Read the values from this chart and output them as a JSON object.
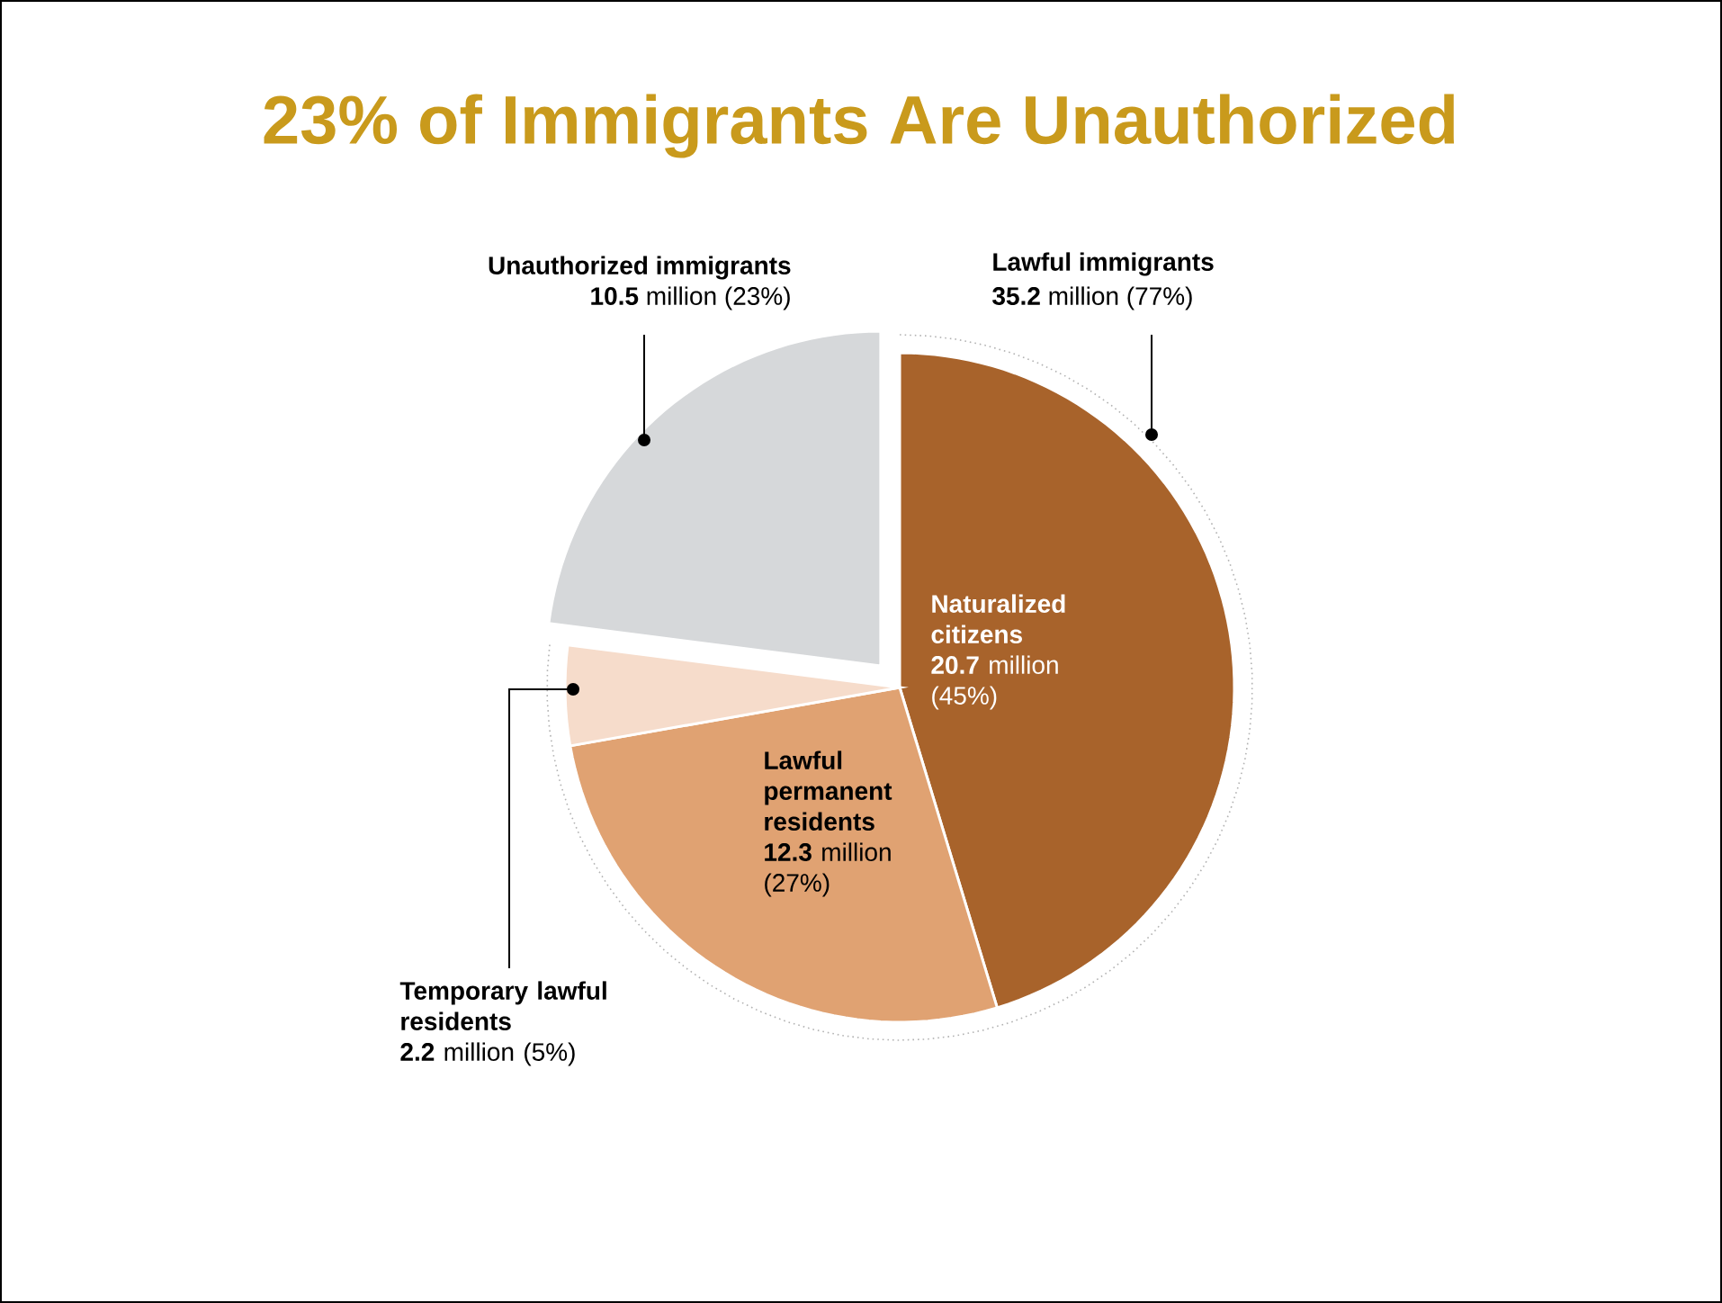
{
  "chart_data": {
    "type": "pie",
    "title": "23% of Immigrants Are Unauthorized",
    "categories": [
      "Naturalized citizens",
      "Lawful permanent residents",
      "Temporary lawful residents",
      "Unauthorized immigrants"
    ],
    "values": [
      20.7,
      12.3,
      2.2,
      10.5
    ],
    "colors": [
      "#a8632b",
      "#e0a272",
      "#f6dccb",
      "#d6d8da"
    ],
    "value_labels": [
      "**20.7** million (45%)",
      "**12.3** million (27%)",
      "**2.2** million (5%)",
      "**10.5** million (23%)"
    ],
    "annotations": [
      "Lawful immigrants",
      "**35.2** million (77%)"
    ]
  }
}
